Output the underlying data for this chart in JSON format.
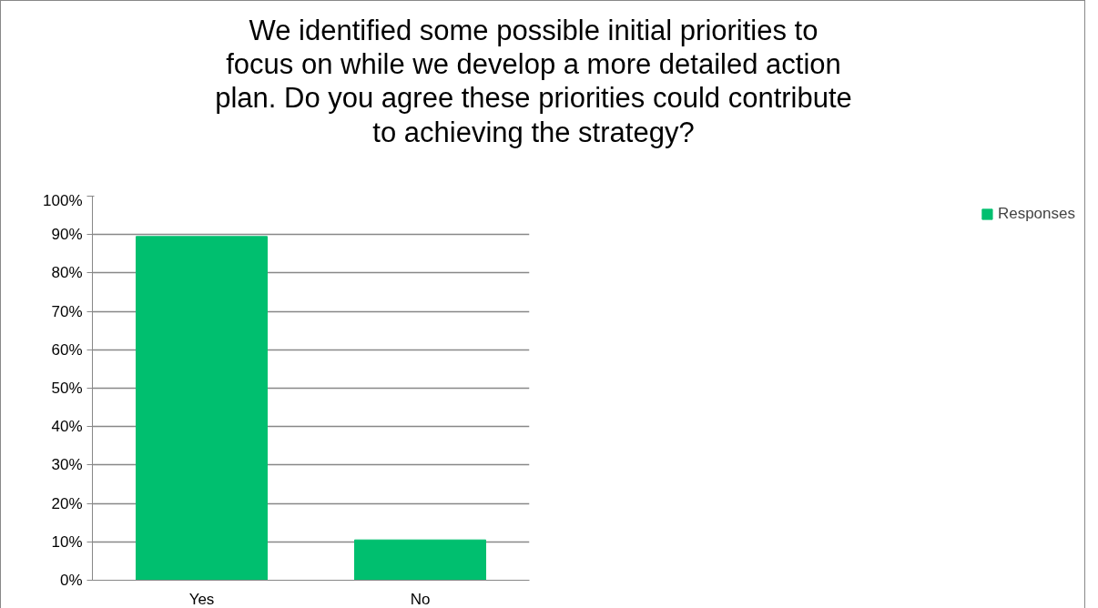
{
  "chart_data": {
    "type": "bar",
    "title": "We identified some possible initial priorities to focus on while we develop a more detailed action plan. Do you agree these priorities could contribute to achieving the strategy?",
    "categories": [
      "Yes",
      "No"
    ],
    "series": [
      {
        "name": "Responses",
        "color": "#00bf6f",
        "values": [
          89.5,
          10.5
        ]
      }
    ],
    "ylim": [
      0,
      100
    ],
    "yticks": [
      {
        "value": 0,
        "label": "0%"
      },
      {
        "value": 10,
        "label": "10%"
      },
      {
        "value": 20,
        "label": "20%"
      },
      {
        "value": 30,
        "label": "30%"
      },
      {
        "value": 40,
        "label": "40%"
      },
      {
        "value": 50,
        "label": "50%"
      },
      {
        "value": 60,
        "label": "60%"
      },
      {
        "value": 70,
        "label": "70%"
      },
      {
        "value": 80,
        "label": "80%"
      },
      {
        "value": 90,
        "label": "90%"
      },
      {
        "value": 100,
        "label": "100%"
      }
    ],
    "grid": "y",
    "legend": "right"
  }
}
